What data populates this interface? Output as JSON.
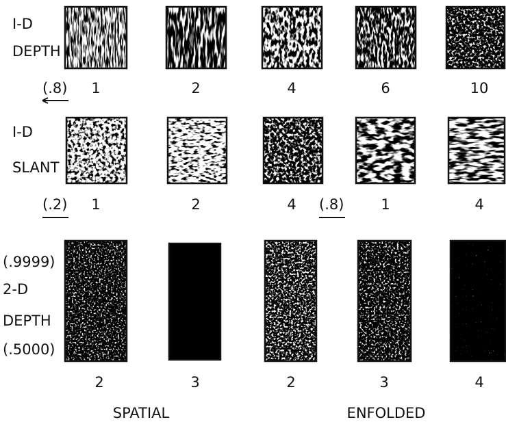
{
  "rows": [
    {
      "title": [
        "I-D",
        "DEPTH"
      ],
      "prefix": "(.8)",
      "numbers": [
        "1",
        "2",
        "4",
        "6",
        "10"
      ]
    },
    {
      "title": [
        "I-D",
        "SLANT"
      ],
      "prefix": "(.2)",
      "mid_prefix": "(.8)",
      "numbers": [
        "1",
        "2",
        "4",
        "1",
        "4"
      ]
    },
    {
      "title": [
        "(.9999)",
        "2-D",
        "DEPTH",
        "(.5000)"
      ],
      "numbers": [
        "2",
        "3",
        "2",
        "3",
        "4"
      ]
    }
  ],
  "groups": [
    "SPATIAL",
    "ENFOLDED"
  ]
}
